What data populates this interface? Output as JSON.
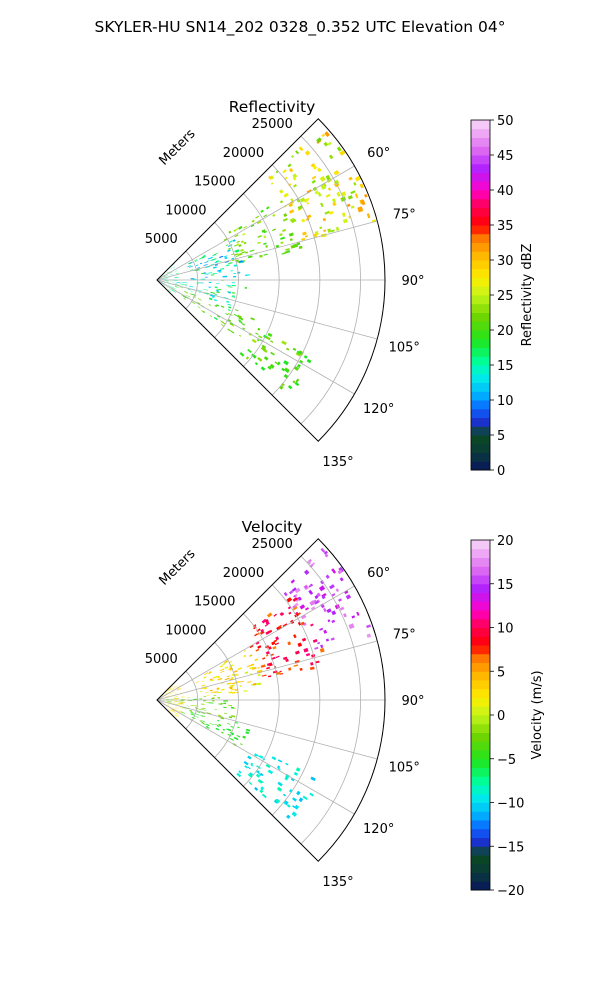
{
  "figure": {
    "suptitle": "SKYLER-HU  SN14_202  0328_0.352 UTC Elevation 04°"
  },
  "chart_data": [
    {
      "type": "heatmap",
      "projection": "polar-sector",
      "title": "Reflectivity",
      "radial_label": "Meters",
      "azimuth_range_deg": [
        45,
        135
      ],
      "range_max_m": 28000,
      "range_ticks": [
        "5000",
        "10000",
        "15000",
        "20000",
        "25000"
      ],
      "range_tick_values": [
        5000,
        10000,
        15000,
        20000,
        25000
      ],
      "azimuth_ticks": [
        "60°",
        "75°",
        "90°",
        "105°",
        "120°",
        "135°"
      ],
      "azimuth_tick_values": [
        60,
        75,
        90,
        105,
        120,
        135
      ],
      "grid": true,
      "colorbar": {
        "label": "Reflectivity dBZ",
        "vmin": 0,
        "vmax": 50,
        "ticks": [
          "0",
          "5",
          "10",
          "15",
          "20",
          "25",
          "30",
          "35",
          "40",
          "45",
          "50"
        ],
        "tick_values": [
          0,
          5,
          10,
          15,
          20,
          25,
          30,
          35,
          40,
          45,
          50
        ]
      },
      "echo_clusters": [
        {
          "az": [
            47,
            75
          ],
          "range_m": [
            18000,
            27500
          ],
          "value": [
            22,
            32
          ]
        },
        {
          "az": [
            56,
            78
          ],
          "range_m": [
            9500,
            18000
          ],
          "value": [
            19,
            25
          ]
        },
        {
          "az": [
            62,
            95
          ],
          "range_m": [
            4000,
            11000
          ],
          "value": [
            9,
            19
          ]
        },
        {
          "az": [
            95,
            110
          ],
          "range_m": [
            2000,
            9500
          ],
          "value": [
            10,
            20
          ]
        },
        {
          "az": [
            110,
            125
          ],
          "range_m": [
            3500,
            12500
          ],
          "value": [
            17,
            24
          ]
        },
        {
          "az": [
            115,
            131
          ],
          "range_m": [
            13000,
            21500
          ],
          "value": [
            18,
            24
          ]
        },
        {
          "az": [
            45,
            135
          ],
          "range_m": [
            300,
            2500
          ],
          "value": [
            12,
            20
          ]
        }
      ]
    },
    {
      "type": "heatmap",
      "projection": "polar-sector",
      "title": "Velocity",
      "radial_label": "Meters",
      "azimuth_range_deg": [
        45,
        135
      ],
      "range_max_m": 28000,
      "range_ticks": [
        "5000",
        "10000",
        "15000",
        "20000",
        "25000"
      ],
      "range_tick_values": [
        5000,
        10000,
        15000,
        20000,
        25000
      ],
      "azimuth_ticks": [
        "60°",
        "75°",
        "90°",
        "105°",
        "120°",
        "135°"
      ],
      "azimuth_tick_values": [
        60,
        75,
        90,
        105,
        120,
        135
      ],
      "grid": true,
      "colorbar": {
        "label": "Velocity (m/s)",
        "vmin": -20,
        "vmax": 20,
        "ticks": [
          "−20",
          "−15",
          "−10",
          "−5",
          "0",
          "5",
          "10",
          "15",
          "20"
        ],
        "tick_values": [
          -20,
          -15,
          -10,
          -5,
          0,
          5,
          10,
          15,
          20
        ]
      },
      "echo_clusters": [
        {
          "az": [
            47,
            73
          ],
          "range_m": [
            20000,
            27500
          ],
          "value": [
            13,
            18
          ]
        },
        {
          "az": [
            52,
            78
          ],
          "range_m": [
            13000,
            21000
          ],
          "value": [
            6,
            11
          ]
        },
        {
          "az": [
            60,
            85
          ],
          "range_m": [
            5000,
            13500
          ],
          "value": [
            0,
            5
          ]
        },
        {
          "az": [
            85,
            105
          ],
          "range_m": [
            1000,
            9500
          ],
          "value": [
            -5,
            -1
          ]
        },
        {
          "az": [
            105,
            120
          ],
          "range_m": [
            3000,
            12000
          ],
          "value": [
            -6,
            -3
          ]
        },
        {
          "az": [
            115,
            132
          ],
          "range_m": [
            13000,
            22000
          ],
          "value": [
            -11,
            -8
          ]
        },
        {
          "az": [
            45,
            135
          ],
          "range_m": [
            300,
            3000
          ],
          "value": [
            1,
            4
          ]
        }
      ]
    }
  ]
}
